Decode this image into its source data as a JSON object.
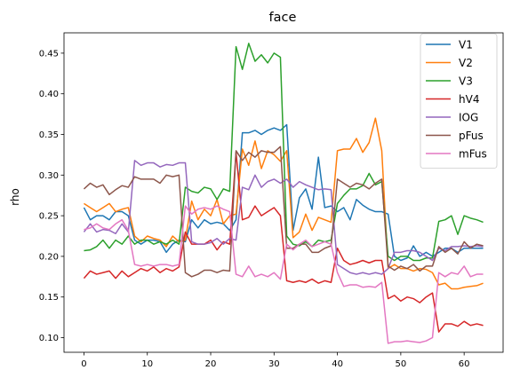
{
  "chart_data": {
    "type": "line",
    "title": "face",
    "xlabel": "",
    "ylabel": "rho",
    "xlim": [
      -3.15,
      66.15
    ],
    "ylim": [
      0.082,
      0.475
    ],
    "xticks": [
      0,
      10,
      20,
      30,
      40,
      50,
      60
    ],
    "yticks": [
      0.1,
      0.15,
      0.2,
      0.25,
      0.3,
      0.35,
      0.4,
      0.45
    ],
    "ytick_labels": [
      "0.10",
      "0.15",
      "0.20",
      "0.25",
      "0.30",
      "0.35",
      "0.40",
      "0.45"
    ],
    "grid": false,
    "legend_position": "top-right",
    "series": [
      {
        "name": "V1",
        "color": "#1f77b4",
        "values": [
          0.26,
          0.245,
          0.25,
          0.25,
          0.245,
          0.255,
          0.255,
          0.25,
          0.22,
          0.215,
          0.22,
          0.22,
          0.218,
          0.205,
          0.215,
          0.22,
          0.218,
          0.245,
          0.235,
          0.245,
          0.24,
          0.242,
          0.24,
          0.232,
          0.245,
          0.352,
          0.352,
          0.355,
          0.35,
          0.355,
          0.358,
          0.355,
          0.362,
          0.232,
          0.272,
          0.283,
          0.258,
          0.322,
          0.26,
          0.262,
          0.255,
          0.26,
          0.245,
          0.27,
          0.263,
          0.258,
          0.255,
          0.255,
          0.252,
          0.2,
          0.195,
          0.198,
          0.213,
          0.2,
          0.205,
          0.2,
          0.205,
          0.21,
          0.21,
          0.205,
          0.21,
          0.21,
          0.21,
          0.21
        ]
      },
      {
        "name": "V2",
        "color": "#ff7f0e",
        "values": [
          0.265,
          0.26,
          0.255,
          0.26,
          0.265,
          0.255,
          0.258,
          0.26,
          0.225,
          0.218,
          0.225,
          0.222,
          0.22,
          0.212,
          0.225,
          0.218,
          0.22,
          0.268,
          0.245,
          0.258,
          0.25,
          0.27,
          0.24,
          0.25,
          0.252,
          0.332,
          0.312,
          0.342,
          0.308,
          0.33,
          0.325,
          0.317,
          0.33,
          0.223,
          0.23,
          0.252,
          0.232,
          0.248,
          0.245,
          0.242,
          0.33,
          0.332,
          0.332,
          0.345,
          0.328,
          0.34,
          0.37,
          0.33,
          0.185,
          0.19,
          0.185,
          0.185,
          0.182,
          0.185,
          0.184,
          0.18,
          0.165,
          0.167,
          0.16,
          0.16,
          0.162,
          0.163,
          0.164,
          0.167
        ]
      },
      {
        "name": "V3",
        "color": "#2ca02c",
        "values": [
          0.207,
          0.208,
          0.212,
          0.22,
          0.21,
          0.22,
          0.215,
          0.225,
          0.215,
          0.22,
          0.22,
          0.215,
          0.218,
          0.215,
          0.22,
          0.215,
          0.285,
          0.28,
          0.278,
          0.285,
          0.283,
          0.27,
          0.283,
          0.28,
          0.458,
          0.43,
          0.462,
          0.44,
          0.448,
          0.438,
          0.45,
          0.445,
          0.225,
          0.215,
          0.213,
          0.218,
          0.212,
          0.22,
          0.218,
          0.22,
          0.265,
          0.275,
          0.283,
          0.283,
          0.287,
          0.302,
          0.288,
          0.292,
          0.2,
          0.195,
          0.2,
          0.2,
          0.195,
          0.195,
          0.198,
          0.198,
          0.243,
          0.245,
          0.25,
          0.227,
          0.25,
          0.247,
          0.245,
          0.242
        ]
      },
      {
        "name": "hV4",
        "color": "#d62728",
        "values": [
          0.173,
          0.182,
          0.178,
          0.18,
          0.182,
          0.173,
          0.182,
          0.175,
          0.18,
          0.185,
          0.182,
          0.187,
          0.18,
          0.185,
          0.182,
          0.187,
          0.23,
          0.215,
          0.215,
          0.215,
          0.22,
          0.208,
          0.218,
          0.215,
          0.328,
          0.245,
          0.248,
          0.262,
          0.25,
          0.255,
          0.26,
          0.25,
          0.17,
          0.168,
          0.17,
          0.168,
          0.172,
          0.167,
          0.17,
          0.168,
          0.21,
          0.195,
          0.19,
          0.192,
          0.195,
          0.192,
          0.195,
          0.195,
          0.148,
          0.152,
          0.145,
          0.15,
          0.148,
          0.143,
          0.15,
          0.155,
          0.107,
          0.117,
          0.117,
          0.114,
          0.12,
          0.115,
          0.117,
          0.115
        ]
      },
      {
        "name": "IOG",
        "color": "#9467bd",
        "values": [
          0.23,
          0.24,
          0.23,
          0.233,
          0.232,
          0.228,
          0.24,
          0.23,
          0.318,
          0.312,
          0.315,
          0.315,
          0.31,
          0.313,
          0.312,
          0.315,
          0.315,
          0.218,
          0.215,
          0.215,
          0.217,
          0.222,
          0.215,
          0.222,
          0.22,
          0.285,
          0.282,
          0.3,
          0.285,
          0.292,
          0.295,
          0.29,
          0.295,
          0.285,
          0.292,
          0.288,
          0.285,
          0.282,
          0.283,
          0.282,
          0.19,
          0.185,
          0.18,
          0.178,
          0.18,
          0.178,
          0.18,
          0.178,
          0.185,
          0.205,
          0.205,
          0.207,
          0.207,
          0.205,
          0.2,
          0.195,
          0.21,
          0.207,
          0.212,
          0.212,
          0.213,
          0.212,
          0.213,
          0.212
        ]
      },
      {
        "name": "pFus",
        "color": "#8c564b",
        "values": [
          0.283,
          0.29,
          0.285,
          0.288,
          0.276,
          0.282,
          0.287,
          0.285,
          0.298,
          0.295,
          0.295,
          0.295,
          0.29,
          0.3,
          0.298,
          0.3,
          0.18,
          0.175,
          0.178,
          0.183,
          0.183,
          0.18,
          0.183,
          0.182,
          0.33,
          0.318,
          0.328,
          0.322,
          0.33,
          0.328,
          0.328,
          0.335,
          0.21,
          0.21,
          0.215,
          0.215,
          0.205,
          0.205,
          0.21,
          0.213,
          0.295,
          0.29,
          0.285,
          0.29,
          0.288,
          0.283,
          0.29,
          0.295,
          0.188,
          0.183,
          0.188,
          0.185,
          0.19,
          0.182,
          0.188,
          0.188,
          0.212,
          0.205,
          0.21,
          0.203,
          0.218,
          0.21,
          0.215,
          0.213
        ]
      },
      {
        "name": "mFus",
        "color": "#e377c2",
        "values": [
          0.233,
          0.235,
          0.24,
          0.235,
          0.233,
          0.24,
          0.245,
          0.232,
          0.19,
          0.188,
          0.19,
          0.188,
          0.19,
          0.19,
          0.188,
          0.19,
          0.262,
          0.252,
          0.258,
          0.26,
          0.258,
          0.262,
          0.258,
          0.255,
          0.178,
          0.175,
          0.188,
          0.175,
          0.178,
          0.175,
          0.18,
          0.172,
          0.215,
          0.208,
          0.215,
          0.22,
          0.212,
          0.215,
          0.218,
          0.215,
          0.18,
          0.163,
          0.165,
          0.165,
          0.162,
          0.163,
          0.162,
          0.168,
          0.093,
          0.095,
          0.095,
          0.096,
          0.095,
          0.094,
          0.096,
          0.1,
          0.18,
          0.175,
          0.18,
          0.178,
          0.188,
          0.175,
          0.178,
          0.178
        ]
      }
    ]
  }
}
